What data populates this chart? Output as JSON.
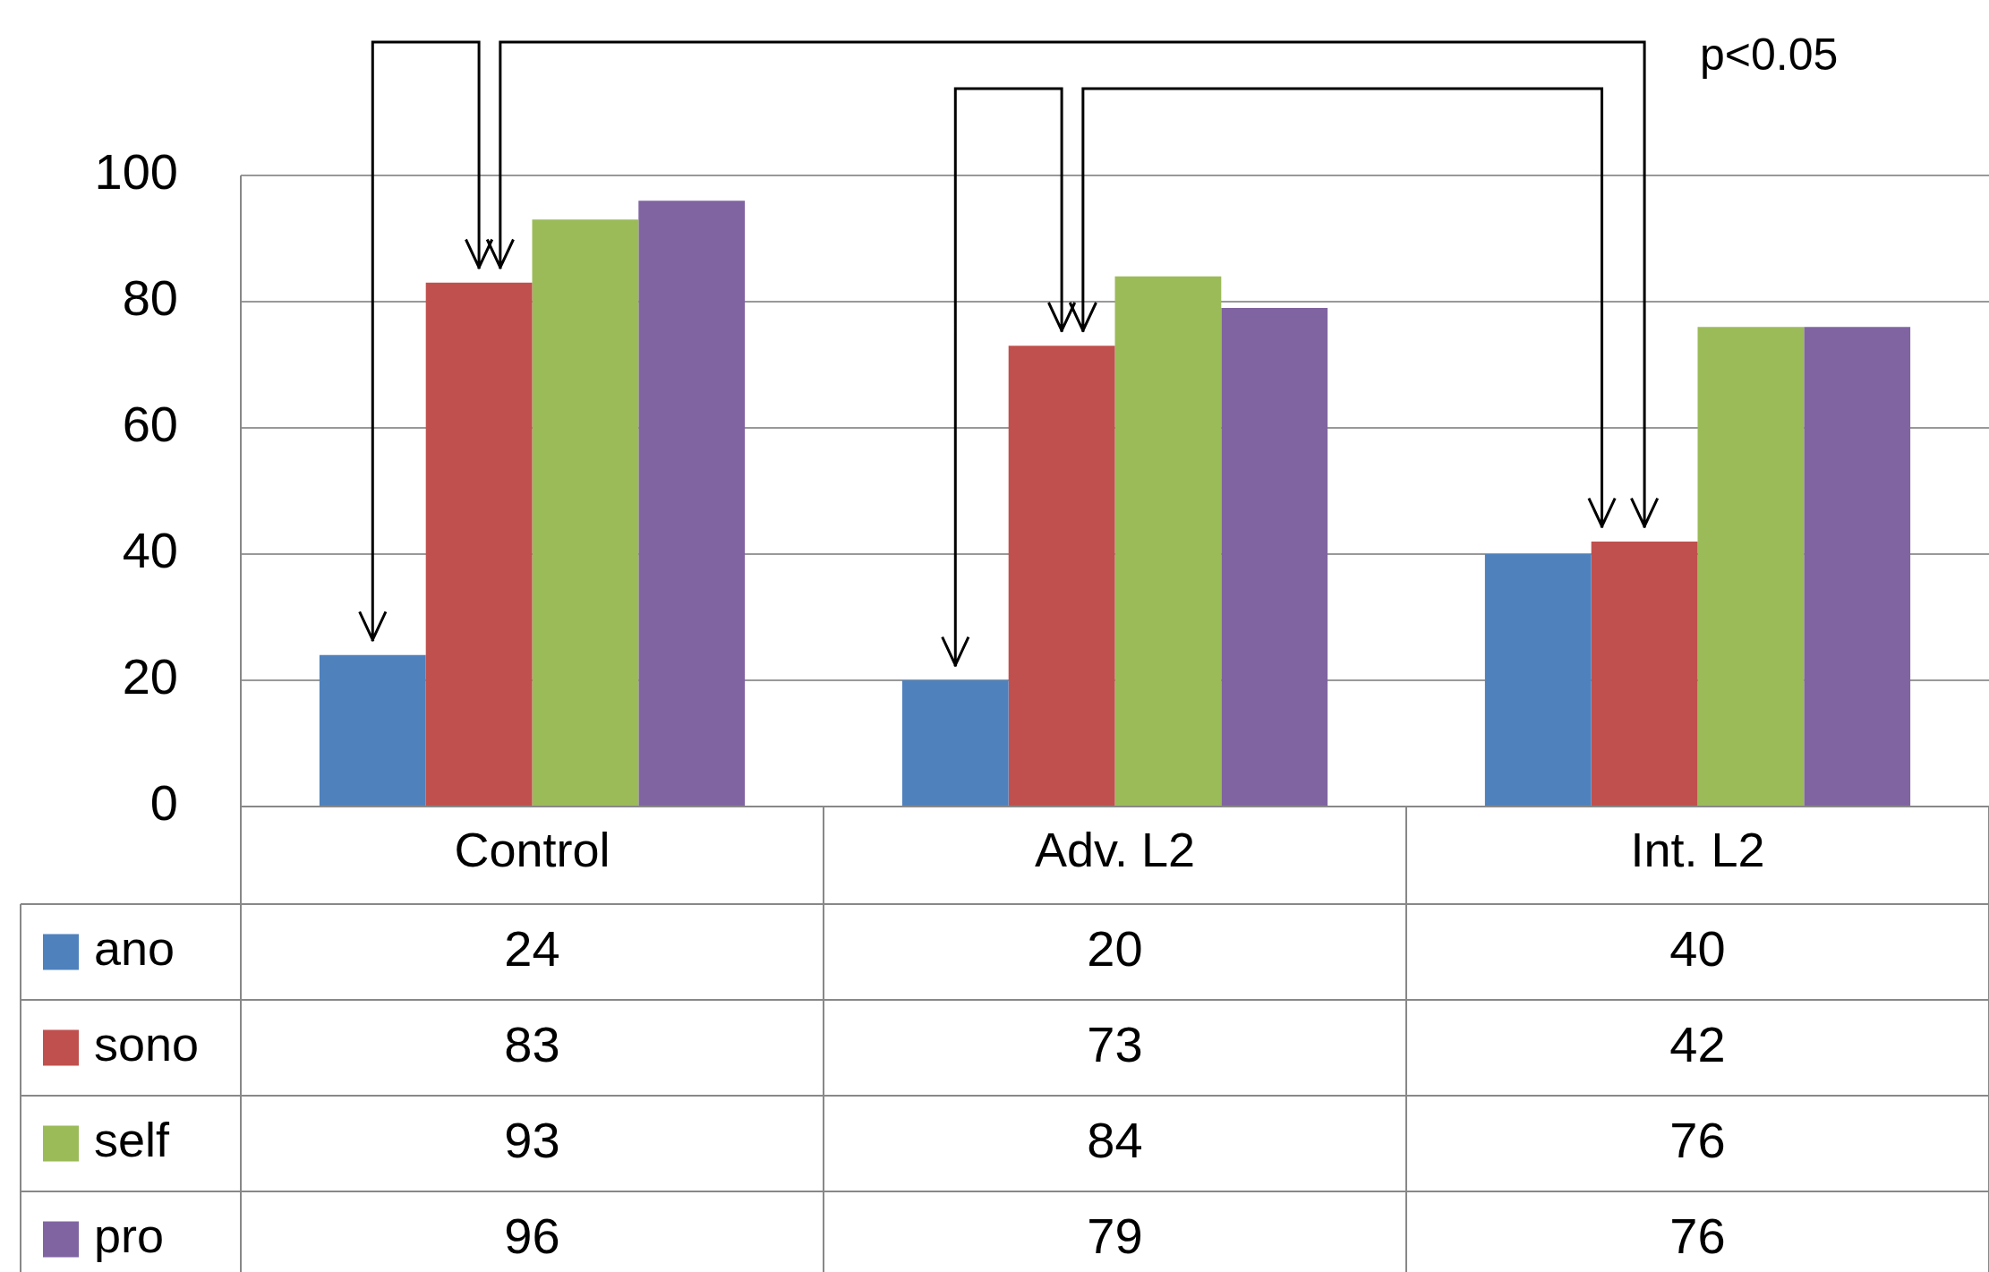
{
  "chart_data": {
    "type": "bar",
    "categories": [
      "Control",
      "Adv. L2",
      "Int. L2"
    ],
    "series": [
      {
        "name": "ano",
        "color": "#4f81bd",
        "values": [
          24,
          20,
          40
        ]
      },
      {
        "name": "sono",
        "color": "#c0504d",
        "values": [
          83,
          73,
          42
        ]
      },
      {
        "name": "self",
        "color": "#9bbb59",
        "values": [
          93,
          84,
          76
        ]
      },
      {
        "name": "pro",
        "color": "#8064a2",
        "values": [
          96,
          79,
          76
        ]
      }
    ],
    "ylim": [
      0,
      100
    ],
    "yticks": [
      0,
      20,
      40,
      60,
      80,
      100
    ],
    "grid": "y",
    "legend": "bottom",
    "data_labels": true,
    "annotations": [
      "p<0.05"
    ]
  }
}
